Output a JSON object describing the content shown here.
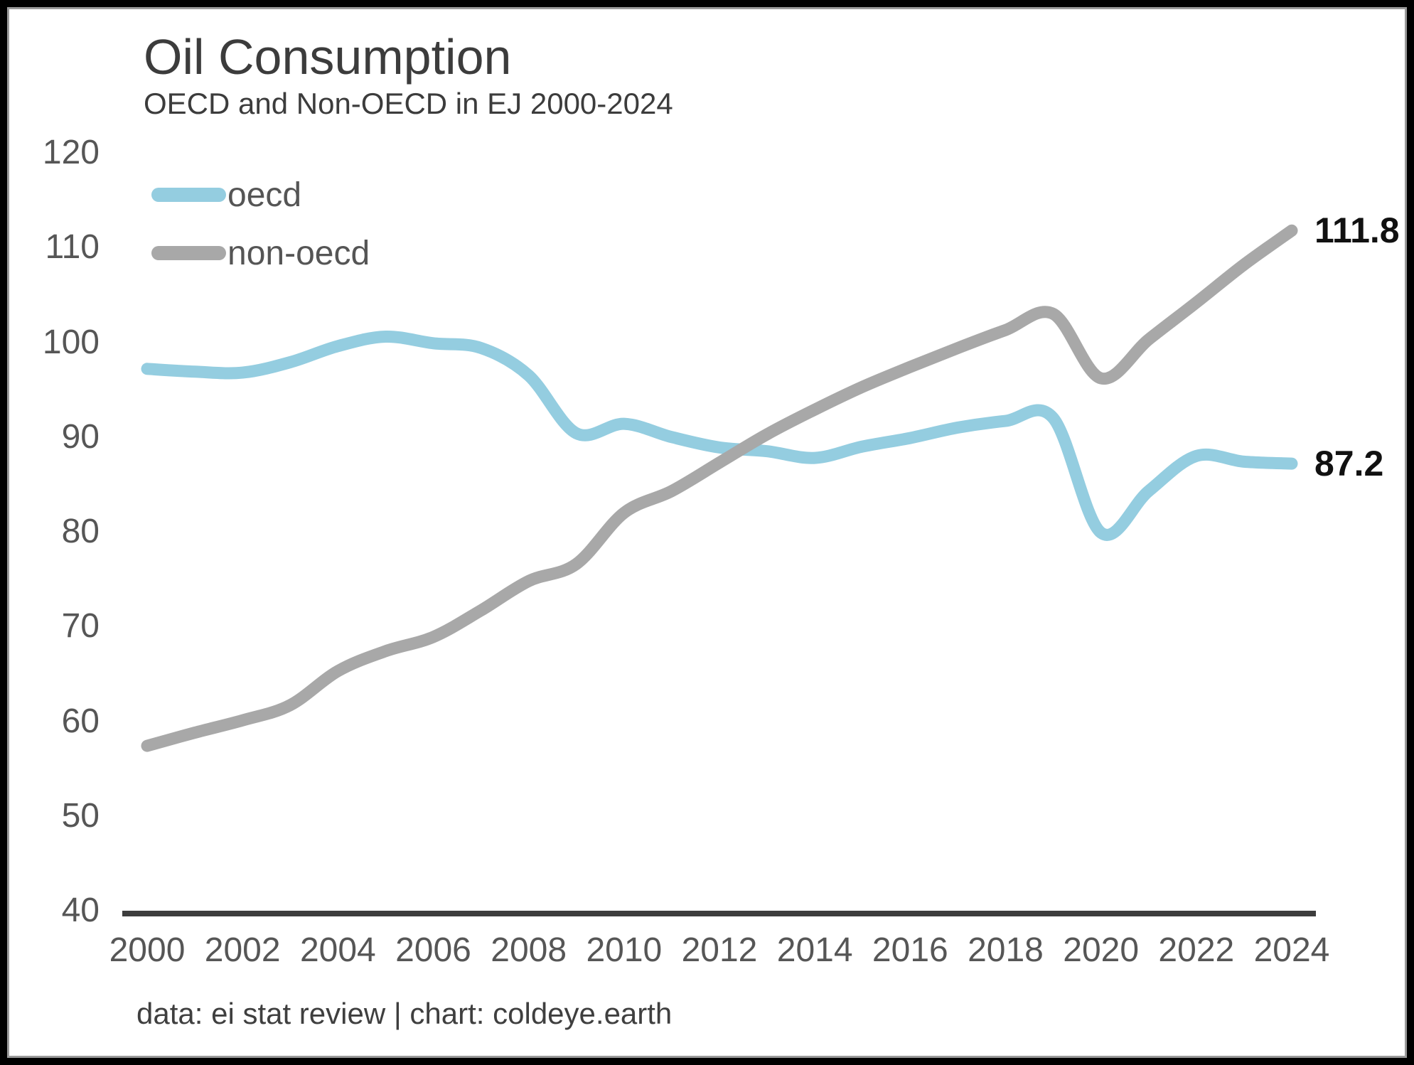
{
  "header": {
    "title": "Oil Consumption",
    "subtitle": "OECD and Non-OECD in EJ 2000-2024"
  },
  "legend": {
    "items": [
      {
        "label": "oecd",
        "color": "#94cde0"
      },
      {
        "label": "non-oecd",
        "color": "#a8a8a8"
      }
    ]
  },
  "footer": {
    "credit": "data: ei stat review | chart: coldeye.earth"
  },
  "colors": {
    "oecd_line": "#94cde0",
    "non_oecd_line": "#a8a8a8",
    "axis": "#3d3d3d",
    "tick_text": "#565656",
    "title_text": "#3c3c3c",
    "end_label_text": "#111111",
    "background": "#ffffff",
    "outer_border": "#000000"
  },
  "chart_data": {
    "type": "line",
    "title": "Oil Consumption",
    "subtitle": "OECD and Non-OECD in EJ 2000-2024",
    "unit": "EJ",
    "x": [
      2000,
      2001,
      2002,
      2003,
      2004,
      2005,
      2006,
      2007,
      2008,
      2009,
      2010,
      2011,
      2012,
      2013,
      2014,
      2015,
      2016,
      2017,
      2018,
      2019,
      2020,
      2021,
      2022,
      2023,
      2024
    ],
    "series": [
      {
        "name": "oecd",
        "color": "#94cde0",
        "end_label": "87.2",
        "end_value": 87.2,
        "values": [
          97.2,
          96.9,
          96.8,
          97.9,
          99.6,
          100.6,
          99.9,
          99.4,
          96.5,
          90.4,
          91.4,
          90.0,
          88.9,
          88.5,
          87.8,
          89.0,
          89.9,
          91.0,
          91.7,
          92.0,
          79.9,
          84.3,
          88.0,
          87.4,
          87.2
        ]
      },
      {
        "name": "non-oecd",
        "color": "#a8a8a8",
        "end_label": "111.8",
        "end_value": 111.8,
        "values": [
          57.4,
          58.8,
          60.1,
          61.7,
          65.3,
          67.4,
          68.9,
          71.7,
          74.8,
          76.6,
          82.0,
          84.3,
          87.3,
          90.3,
          92.9,
          95.3,
          97.4,
          99.4,
          101.3,
          103.0,
          96.2,
          100.3,
          104.2,
          108.2,
          111.8
        ]
      }
    ],
    "xlabel": "",
    "ylabel": "",
    "ylim": [
      40,
      120
    ],
    "y_ticks": [
      120,
      110,
      100,
      90,
      80,
      70,
      60,
      50,
      40
    ],
    "x_ticks": [
      2000,
      2002,
      2004,
      2006,
      2008,
      2010,
      2012,
      2014,
      2016,
      2018,
      2020,
      2022,
      2024
    ],
    "grid": false,
    "legend_position": "top-left"
  }
}
